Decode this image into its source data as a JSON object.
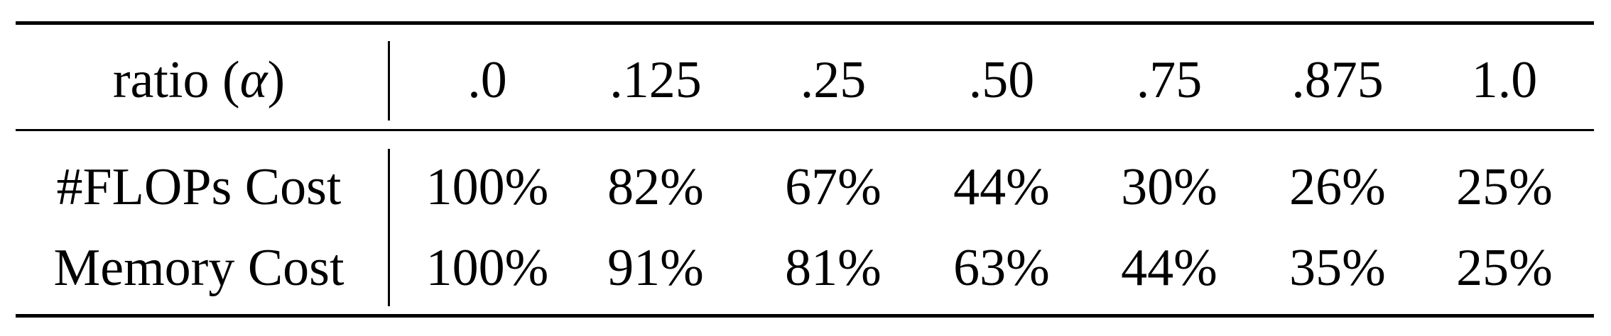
{
  "table": {
    "header": {
      "label_prefix": "ratio (",
      "label_symbol": "α",
      "label_suffix": ")",
      "values": [
        ".0",
        ".125",
        ".25",
        ".50",
        ".75",
        ".875",
        "1.0"
      ]
    },
    "rows": [
      {
        "label": "#FLOPs Cost",
        "values": [
          "100%",
          "82%",
          "67%",
          "44%",
          "30%",
          "26%",
          "25%"
        ]
      },
      {
        "label": "Memory Cost",
        "values": [
          "100%",
          "91%",
          "81%",
          "63%",
          "44%",
          "35%",
          "25%"
        ]
      }
    ]
  }
}
